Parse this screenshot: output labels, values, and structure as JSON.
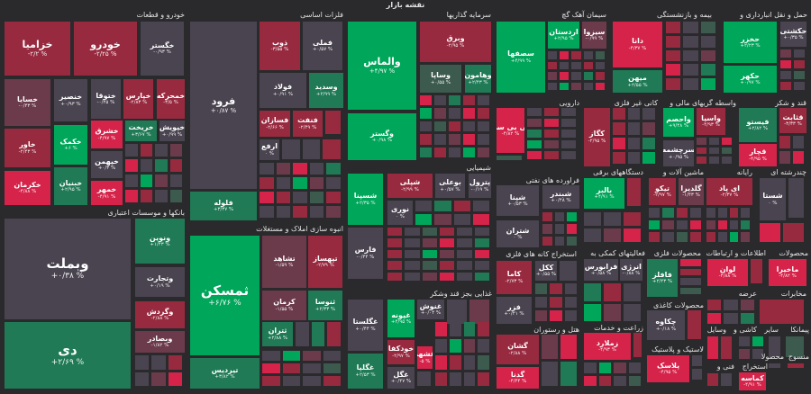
{
  "header": {
    "title": "نقشه بازار"
  },
  "colors": {
    "green": "#00a65a",
    "dark_green": "#1f7a55",
    "gray_green": "#3c5a4d",
    "red": "#d5234a",
    "dark_red": "#982a40",
    "rose": "#6c3b4b",
    "neutral": "#4a4450",
    "background": "#2a2a2d"
  },
  "sectors": [
    {
      "title": "خودرو و قطعات",
      "tiles": [
        {
          "sym": "خزامیا",
          "chg": "-۲/۲ %",
          "c": "dr"
        },
        {
          "sym": "خودرو",
          "chg": "-۲/۲۵ %",
          "c": "dr"
        },
        {
          "sym": "خگستر",
          "chg": "-۰/۹۳ %",
          "c": "n"
        },
        {
          "sym": "خسایا",
          "chg": "-۰/۴۳ %",
          "c": "ro"
        },
        {
          "sym": "خنصیر",
          "chg": "+۰/۹۳ %",
          "c": "n"
        },
        {
          "sym": "ختوقا",
          "chg": "-۰/۴۵ %",
          "c": "n"
        },
        {
          "sym": "خپارس",
          "chg": "-۲/۸۳ %",
          "c": "dr"
        },
        {
          "sym": "خمحرکه",
          "chg": "-۳/۵ %",
          "c": "dr"
        },
        {
          "sym": "خاور",
          "chg": "-۲/۴۳ %",
          "c": "dr"
        },
        {
          "sym": "خکمک",
          "chg": "+۶ %",
          "c": "g"
        },
        {
          "sym": "خشرق",
          "chg": "-۴/۹۷ %",
          "c": "r"
        },
        {
          "sym": "خریخت",
          "chg": "+۳/۶۷ %",
          "c": "dg"
        },
        {
          "sym": "خپویش",
          "chg": "+۰/۹۹ %",
          "c": "n"
        },
        {
          "sym": "خپهمن",
          "chg": "+۰/۳ %",
          "c": "n"
        },
        {
          "sym": "خکرمان",
          "chg": "-۴/۸۸ %",
          "c": "r"
        },
        {
          "sym": "خبنیان",
          "chg": "+۲/۹۵ %",
          "c": "dg"
        },
        {
          "sym": "خمهر",
          "chg": "-۴/۹۱ %",
          "c": "r"
        }
      ]
    },
    {
      "title": "فلزات اساسی",
      "tiles": [
        {
          "sym": "فرود",
          "chg": "+۰/۸۷ %",
          "c": "n"
        },
        {
          "sym": "فلوله",
          "chg": "+۳/۳۷ %",
          "c": "dg"
        },
        {
          "sym": "ذوب",
          "chg": "-۳/۵۵ %",
          "c": "dr"
        },
        {
          "sym": "فملی",
          "chg": "+۰/۵۷ %",
          "c": "n"
        },
        {
          "sym": "فولاد",
          "chg": "+۰/۹۱ %",
          "c": "n"
        },
        {
          "sym": "وسدید",
          "chg": "+۲/۹۹ %",
          "c": "dg"
        },
        {
          "sym": "فسازان",
          "chg": "-۲/۶۶ %",
          "c": "dr"
        },
        {
          "sym": "فنفت",
          "chg": "-۲/۴۹ %",
          "c": "dr"
        },
        {
          "sym": "ارفع",
          "chg": "۰ %",
          "c": "n"
        }
      ]
    },
    {
      "title": "سرمایه گذاریها",
      "tiles": [
        {
          "sym": "والماس",
          "chg": "+۴/۹۷ %",
          "c": "g"
        },
        {
          "sym": "وگستر",
          "chg": "+۰/۹۸ %",
          "c": "g"
        },
        {
          "sym": "وبرق",
          "chg": "-۲/۹۵ %",
          "c": "dr"
        },
        {
          "sym": "وساپا",
          "chg": "+۰/۵۵ %",
          "c": "gg"
        },
        {
          "sym": "وهامون",
          "chg": "+۲/۴۳ %",
          "c": "dg"
        }
      ]
    },
    {
      "title": "سیمان آهک گچ",
      "tiles": [
        {
          "sym": "سصفها",
          "chg": "+۴/۹۹ %",
          "c": "g"
        },
        {
          "sym": "اردستان",
          "chg": "+۲/۹۵ %",
          "c": "g"
        },
        {
          "sym": "سیزوا",
          "chg": "-۰/۹۹ %",
          "c": "ro"
        }
      ]
    },
    {
      "title": "بیمه و بازنشستگی",
      "tiles": [
        {
          "sym": "دانا",
          "chg": "-۴/۳۷ %",
          "c": "r"
        },
        {
          "sym": "میهن",
          "chg": "+۲/۵۵ %",
          "c": "dg"
        }
      ]
    },
    {
      "title": "حمل و نقل انبارداری و",
      "tiles": [
        {
          "sym": "حخزر",
          "chg": "+۲/۲۳ %",
          "c": "g"
        },
        {
          "sym": "حکشتی",
          "chg": "+۰/۳۵ %",
          "c": "n"
        },
        {
          "sym": "حکهر",
          "chg": "+۰/۹۷ %",
          "c": "g"
        }
      ]
    },
    {
      "title": "دارویی",
      "tiles": [
        {
          "sym": "کی بی سی",
          "chg": "-۴/۸۲ %",
          "c": "r"
        }
      ]
    },
    {
      "title": "کانی غیر فلزی",
      "tiles": [
        {
          "sym": "کگاز",
          "chg": "-۲/۹۵ %",
          "c": "dr"
        }
      ]
    },
    {
      "title": "واسطه گریهای مالی و",
      "tiles": [
        {
          "sym": "واحصم",
          "chg": "+۹/۴۸ %",
          "c": "g"
        },
        {
          "sym": "واسپا",
          "chg": "-۲/۹۳ %",
          "c": "dr"
        },
        {
          "sym": "سرچشمه",
          "chg": "+۰/۹۵ %",
          "c": "n"
        }
      ]
    },
    {
      "title": "قند و شکر",
      "tiles": [
        {
          "sym": "فیستو",
          "chg": "+۲/۸۲ %",
          "c": "dg"
        },
        {
          "sym": "قثابت",
          "chg": "-۳/۳۳ %",
          "c": "dr"
        },
        {
          "sym": "قچار",
          "chg": "-۴/۹۵ %",
          "c": "r"
        }
      ]
    },
    {
      "title": "شیمیایی",
      "tiles": [
        {
          "sym": "شسپنا",
          "chg": "+۲/۳۵ %",
          "c": "g"
        },
        {
          "sym": "شپلی",
          "chg": "-۲/۹۹ %",
          "c": "dr"
        },
        {
          "sym": "بوعلی",
          "chg": "+۰/۵۷ %",
          "c": "n"
        },
        {
          "sym": "پترول",
          "chg": "-۰/۱۹ %",
          "c": "n"
        },
        {
          "sym": "نوری",
          "chg": "۰ %",
          "c": "n"
        },
        {
          "sym": "فارس",
          "chg": "-۰/۴۴ %",
          "c": "n"
        }
      ]
    },
    {
      "title": "فراورده های نفتی",
      "tiles": [
        {
          "sym": "شپنا",
          "chg": "+۰/۵۳ %",
          "c": "n"
        },
        {
          "sym": "شبندر",
          "chg": "+۰/۴۸ %",
          "c": "n"
        },
        {
          "sym": "شتران",
          "chg": "۰ %",
          "c": "n"
        }
      ]
    },
    {
      "title": "دستگاههای برقی",
      "tiles": [
        {
          "sym": "بالبر",
          "chg": "+۴/۹۱ %",
          "c": "g"
        }
      ]
    },
    {
      "title": "ماشین آلات و",
      "tiles": [
        {
          "sym": "تیکو",
          "chg": "-۲/۹۷ %",
          "c": "dr"
        },
        {
          "sym": "گلدیرا",
          "chg": "-۱/۴۳ %",
          "c": "ro"
        }
      ]
    },
    {
      "title": "رایانه",
      "tiles": [
        {
          "sym": "ای پاد",
          "chg": "-۲/۳۷ %",
          "c": "dr"
        }
      ]
    },
    {
      "title": "چندرشته ای",
      "tiles": [
        {
          "sym": "شستا",
          "chg": "۰ %",
          "c": "n"
        }
      ]
    },
    {
      "title": "استخراج کانه های فلزی",
      "tiles": [
        {
          "sym": "کاما",
          "chg": "-۲/۷۳ %",
          "c": "dr"
        },
        {
          "sym": "ککل",
          "chg": "+۰/۵۵ %",
          "c": "n"
        },
        {
          "sym": "فزر",
          "chg": "+۰/۴۱ %",
          "c": "n"
        }
      ]
    },
    {
      "title": "فعالیتهای کمکی به",
      "tiles": [
        {
          "sym": "فرابورس",
          "chg": "+۰/۵۸ %",
          "c": "n"
        },
        {
          "sym": "انرژی",
          "chg": "-۰/۸۸ %",
          "c": "n"
        }
      ]
    },
    {
      "title": "محصولات فلزی",
      "tiles": [
        {
          "sym": "فافلز",
          "chg": "+۲/۴۳ %",
          "c": "dg"
        }
      ]
    },
    {
      "title": "اطلاعات و ارتباطات",
      "tiles": [
        {
          "sym": "لوان",
          "chg": "-۴/۸۸ %",
          "c": "r"
        }
      ]
    },
    {
      "title": "محصولات",
      "tiles": [
        {
          "sym": "ماخیرا",
          "chg": "-۴/۸۲ %",
          "c": "r"
        }
      ]
    },
    {
      "title": "بانکها و موسسات اعتباری",
      "tiles": [
        {
          "sym": "وبملت",
          "chg": "+۰/۳۸ %",
          "c": "n"
        },
        {
          "sym": "دی",
          "chg": "+۲/۶۹ %",
          "c": "dg"
        },
        {
          "sym": "ونوین",
          "chg": "+۱/۴۳ %",
          "c": "dg"
        },
        {
          "sym": "وتجارت",
          "chg": "+۰/۱۹ %",
          "c": "n"
        },
        {
          "sym": "وگردش",
          "chg": "-۲/۸۸ %",
          "c": "dr"
        },
        {
          "sym": "وبصادر",
          "chg": "-۱/۸۲ %",
          "c": "ro"
        }
      ]
    },
    {
      "title": "انبوه سازی املاک و مستغلات",
      "tiles": [
        {
          "sym": "ثمسکن",
          "chg": "+۶/۷۶ %",
          "c": "g"
        },
        {
          "sym": "تیردیس",
          "chg": "+۳/۸۲ %",
          "c": "dg"
        },
        {
          "sym": "تشاهد",
          "chg": "-۱/۵۹ %",
          "c": "ro"
        },
        {
          "sym": "تپهساز",
          "chg": "-۲/۷۹ %",
          "c": "dr"
        },
        {
          "sym": "کرمان",
          "chg": "-۱/۵۵ %",
          "c": "ro"
        },
        {
          "sym": "ثنوسا",
          "chg": "+۲/۳۳ %",
          "c": "dg"
        },
        {
          "sym": "ثتران",
          "chg": "+۲/۸۸ %",
          "c": "dg"
        }
      ]
    },
    {
      "title": "غذایی بجز قند وشکر",
      "tiles": [
        {
          "sym": "غگلستا",
          "chg": "+۰/۴۴ %",
          "c": "n"
        },
        {
          "sym": "غپونه",
          "chg": "+۴/۹۵ %",
          "c": "g"
        },
        {
          "sym": "غنوش",
          "chg": "+۰/۰۴ %",
          "c": "n"
        },
        {
          "sym": "خودکفا",
          "chg": "-۲/۹۷ %",
          "c": "dr"
        },
        {
          "sym": "غشهد",
          "chg": "-۵ %",
          "c": "r"
        },
        {
          "sym": "غگلپا",
          "chg": "+۲/۵۳ %",
          "c": "dg"
        },
        {
          "sym": "غگل",
          "chg": "+۰/۴۷ %",
          "c": "n"
        }
      ]
    },
    {
      "title": "هتل و رستوران",
      "tiles": [
        {
          "sym": "گشان",
          "chg": "-۲/۸۸ %",
          "c": "dr"
        },
        {
          "sym": "گدنا",
          "chg": "-۴/۴۴ %",
          "c": "r"
        }
      ]
    },
    {
      "title": "زراعت و خدمات",
      "tiles": [
        {
          "sym": "زملارد",
          "chg": "-۴/۹۳ %",
          "c": "r"
        }
      ]
    },
    {
      "title": "محصولات کاغذی",
      "tiles": [
        {
          "sym": "چکاوه",
          "chg": "+۰/۱۸ %",
          "c": "n"
        }
      ]
    },
    {
      "title": "لاستیک و پلاستیک",
      "tiles": [
        {
          "sym": "پلاسک",
          "chg": "-۴/۹۵ %",
          "c": "r"
        }
      ]
    },
    {
      "title": "عرضه",
      "tiles": []
    },
    {
      "title": "مخابرات",
      "tiles": []
    },
    {
      "title": "کاشی و",
      "tiles": []
    },
    {
      "title": "وسایل",
      "tiles": []
    },
    {
      "title": "سایر",
      "tiles": []
    },
    {
      "title": "پیمانکا",
      "tiles": []
    },
    {
      "title": "فنی و",
      "tiles": []
    },
    {
      "title": "استخراج",
      "tiles": [
        {
          "sym": "کماسه",
          "chg": "-۴/۹۱ %",
          "c": "r"
        }
      ]
    },
    {
      "title": "محصولا",
      "tiles": []
    },
    {
      "title": "منسوج",
      "tiles": []
    }
  ]
}
